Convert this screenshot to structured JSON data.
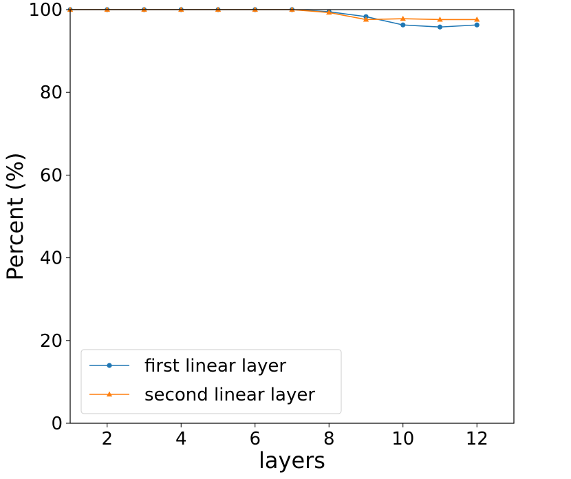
{
  "chart_data": {
    "type": "line",
    "title": "",
    "xlabel": "layers",
    "ylabel": "Percent (%)",
    "xlim": [
      1,
      13
    ],
    "ylim": [
      0,
      100
    ],
    "xticks": [
      2,
      4,
      6,
      8,
      10,
      12
    ],
    "yticks": [
      0,
      20,
      40,
      60,
      80,
      100
    ],
    "grid": false,
    "legend_position": "lower-left",
    "x": [
      1,
      2,
      3,
      4,
      5,
      6,
      7,
      8,
      9,
      10,
      11,
      12
    ],
    "series": [
      {
        "name": "first linear layer",
        "color": "#1f77b4",
        "marker": "circle",
        "values": [
          100,
          100,
          100,
          100,
          100,
          100,
          100,
          99.5,
          98.3,
          96.3,
          95.8,
          96.3
        ]
      },
      {
        "name": "second linear layer",
        "color": "#ff7f0e",
        "marker": "triangle-up",
        "values": [
          100,
          100,
          100,
          100,
          100,
          100,
          100,
          99.3,
          97.6,
          97.8,
          97.6,
          97.6
        ]
      }
    ]
  }
}
